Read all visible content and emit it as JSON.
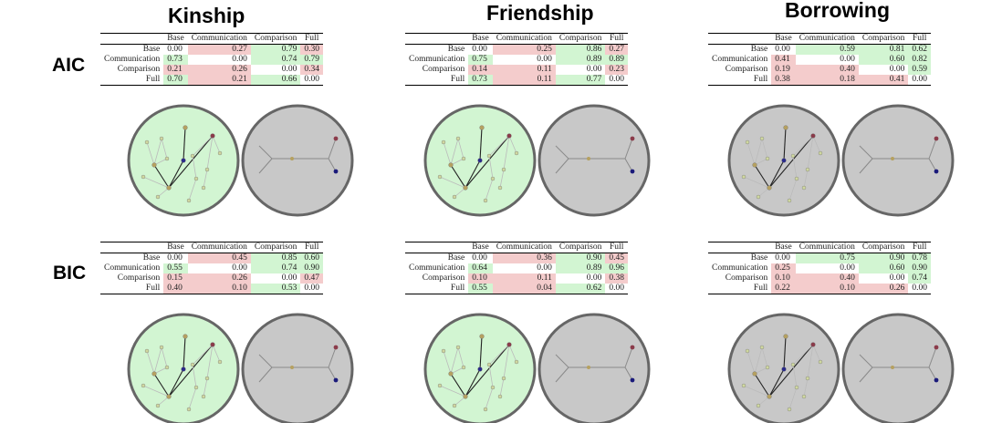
{
  "columns": [
    {
      "title": "Kinship"
    },
    {
      "title": "Friendship"
    },
    {
      "title": "Borrowing"
    }
  ],
  "rows": [
    {
      "label": "AIC"
    },
    {
      "label": "BIC"
    }
  ],
  "matrix_headers": [
    "Base",
    "Communication",
    "Comparison",
    "Full"
  ],
  "panels": [
    {
      "id": "kinship-aic",
      "cells": [
        [
          {
            "v": "0.00",
            "c": "n"
          },
          {
            "v": "0.27",
            "c": "r"
          },
          {
            "v": "0.79",
            "c": "g"
          },
          {
            "v": "0.30",
            "c": "r"
          }
        ],
        [
          {
            "v": "0.73",
            "c": "g"
          },
          {
            "v": "0.00",
            "c": "n"
          },
          {
            "v": "0.74",
            "c": "g"
          },
          {
            "v": "0.79",
            "c": "g"
          }
        ],
        [
          {
            "v": "0.21",
            "c": "r"
          },
          {
            "v": "0.26",
            "c": "r"
          },
          {
            "v": "0.00",
            "c": "n"
          },
          {
            "v": "0.34",
            "c": "r"
          }
        ],
        [
          {
            "v": "0.70",
            "c": "g"
          },
          {
            "v": "0.21",
            "c": "r"
          },
          {
            "v": "0.66",
            "c": "g"
          },
          {
            "v": "0.00",
            "c": "n"
          }
        ]
      ],
      "circle_fill": "#d2f5d2"
    },
    {
      "id": "friendship-aic",
      "cells": [
        [
          {
            "v": "0.00",
            "c": "n"
          },
          {
            "v": "0.25",
            "c": "r"
          },
          {
            "v": "0.86",
            "c": "g"
          },
          {
            "v": "0.27",
            "c": "r"
          }
        ],
        [
          {
            "v": "0.75",
            "c": "g"
          },
          {
            "v": "0.00",
            "c": "n"
          },
          {
            "v": "0.89",
            "c": "g"
          },
          {
            "v": "0.89",
            "c": "g"
          }
        ],
        [
          {
            "v": "0.14",
            "c": "r"
          },
          {
            "v": "0.11",
            "c": "r"
          },
          {
            "v": "0.00",
            "c": "n"
          },
          {
            "v": "0.23",
            "c": "r"
          }
        ],
        [
          {
            "v": "0.73",
            "c": "g"
          },
          {
            "v": "0.11",
            "c": "r"
          },
          {
            "v": "0.77",
            "c": "g"
          },
          {
            "v": "0.00",
            "c": "n"
          }
        ]
      ],
      "circle_fill": "#d2f5d2"
    },
    {
      "id": "borrowing-aic",
      "cells": [
        [
          {
            "v": "0.00",
            "c": "n"
          },
          {
            "v": "0.59",
            "c": "g"
          },
          {
            "v": "0.81",
            "c": "g"
          },
          {
            "v": "0.62",
            "c": "g"
          }
        ],
        [
          {
            "v": "0.41",
            "c": "r"
          },
          {
            "v": "0.00",
            "c": "n"
          },
          {
            "v": "0.60",
            "c": "g"
          },
          {
            "v": "0.82",
            "c": "g"
          }
        ],
        [
          {
            "v": "0.19",
            "c": "r"
          },
          {
            "v": "0.40",
            "c": "r"
          },
          {
            "v": "0.00",
            "c": "n"
          },
          {
            "v": "0.59",
            "c": "g"
          }
        ],
        [
          {
            "v": "0.38",
            "c": "r"
          },
          {
            "v": "0.18",
            "c": "r"
          },
          {
            "v": "0.41",
            "c": "r"
          },
          {
            "v": "0.00",
            "c": "n"
          }
        ]
      ],
      "circle_fill": "#c8c8c8"
    },
    {
      "id": "kinship-bic",
      "cells": [
        [
          {
            "v": "0.00",
            "c": "n"
          },
          {
            "v": "0.45",
            "c": "r"
          },
          {
            "v": "0.85",
            "c": "g"
          },
          {
            "v": "0.60",
            "c": "g"
          }
        ],
        [
          {
            "v": "0.55",
            "c": "g"
          },
          {
            "v": "0.00",
            "c": "n"
          },
          {
            "v": "0.74",
            "c": "g"
          },
          {
            "v": "0.90",
            "c": "g"
          }
        ],
        [
          {
            "v": "0.15",
            "c": "r"
          },
          {
            "v": "0.26",
            "c": "r"
          },
          {
            "v": "0.00",
            "c": "n"
          },
          {
            "v": "0.47",
            "c": "r"
          }
        ],
        [
          {
            "v": "0.40",
            "c": "r"
          },
          {
            "v": "0.10",
            "c": "r"
          },
          {
            "v": "0.53",
            "c": "g"
          },
          {
            "v": "0.00",
            "c": "n"
          }
        ]
      ],
      "circle_fill": "#d2f5d2"
    },
    {
      "id": "friendship-bic",
      "cells": [
        [
          {
            "v": "0.00",
            "c": "n"
          },
          {
            "v": "0.36",
            "c": "r"
          },
          {
            "v": "0.90",
            "c": "g"
          },
          {
            "v": "0.45",
            "c": "r"
          }
        ],
        [
          {
            "v": "0.64",
            "c": "g"
          },
          {
            "v": "0.00",
            "c": "n"
          },
          {
            "v": "0.89",
            "c": "g"
          },
          {
            "v": "0.96",
            "c": "g"
          }
        ],
        [
          {
            "v": "0.10",
            "c": "r"
          },
          {
            "v": "0.11",
            "c": "r"
          },
          {
            "v": "0.00",
            "c": "n"
          },
          {
            "v": "0.38",
            "c": "r"
          }
        ],
        [
          {
            "v": "0.55",
            "c": "g"
          },
          {
            "v": "0.04",
            "c": "r"
          },
          {
            "v": "0.62",
            "c": "g"
          },
          {
            "v": "0.00",
            "c": "n"
          }
        ]
      ],
      "circle_fill": "#d2f5d2"
    },
    {
      "id": "borrowing-bic",
      "cells": [
        [
          {
            "v": "0.00",
            "c": "n"
          },
          {
            "v": "0.75",
            "c": "g"
          },
          {
            "v": "0.90",
            "c": "g"
          },
          {
            "v": "0.78",
            "c": "g"
          }
        ],
        [
          {
            "v": "0.25",
            "c": "r"
          },
          {
            "v": "0.00",
            "c": "n"
          },
          {
            "v": "0.60",
            "c": "g"
          },
          {
            "v": "0.90",
            "c": "g"
          }
        ],
        [
          {
            "v": "0.10",
            "c": "r"
          },
          {
            "v": "0.40",
            "c": "r"
          },
          {
            "v": "0.00",
            "c": "n"
          },
          {
            "v": "0.74",
            "c": "g"
          }
        ],
        [
          {
            "v": "0.22",
            "c": "r"
          },
          {
            "v": "0.10",
            "c": "r"
          },
          {
            "v": "0.26",
            "c": "r"
          },
          {
            "v": "0.00",
            "c": "n"
          }
        ]
      ],
      "circle_fill": "#c8c8c8"
    }
  ],
  "colors": {
    "positive": "#d2f5d2",
    "negative": "#f4cccc",
    "circle_stroke": "#666666",
    "gray_circle": "#c8c8c8"
  }
}
